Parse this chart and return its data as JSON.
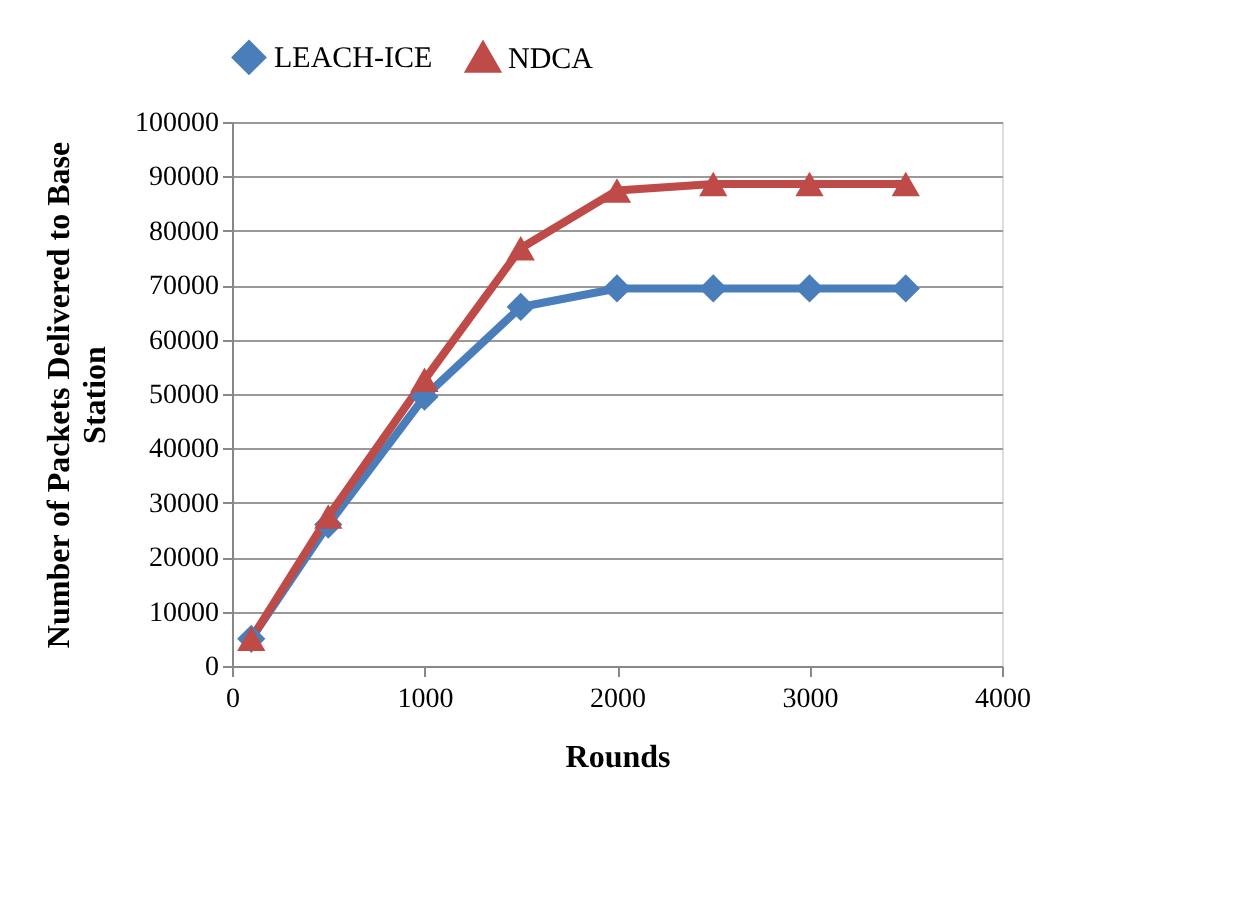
{
  "chart_data": {
    "type": "line",
    "xlabel": "Rounds",
    "ylabel": "Number of Packets Delivered to Base Station",
    "x": [
      100,
      500,
      1000,
      1500,
      2000,
      2500,
      3000,
      3500
    ],
    "series": [
      {
        "name": "LEACH-ICE",
        "color": "#4a7ebb",
        "marker": "diamond",
        "values": [
          5000,
          26000,
          49500,
          66000,
          69400,
          69400,
          69400,
          69400
        ]
      },
      {
        "name": "NDCA",
        "color": "#be4b48",
        "marker": "triangle",
        "values": [
          5000,
          27500,
          52600,
          76800,
          87400,
          88600,
          88600,
          88600
        ]
      }
    ],
    "xlim": [
      0,
      4000
    ],
    "xticks": [
      0,
      1000,
      2000,
      3000,
      4000
    ],
    "ylim": [
      0,
      100000
    ],
    "yticks": [
      0,
      10000,
      20000,
      30000,
      40000,
      50000,
      60000,
      70000,
      80000,
      90000,
      100000
    ],
    "grid": "y",
    "legend": "top",
    "line_style": "solid"
  }
}
